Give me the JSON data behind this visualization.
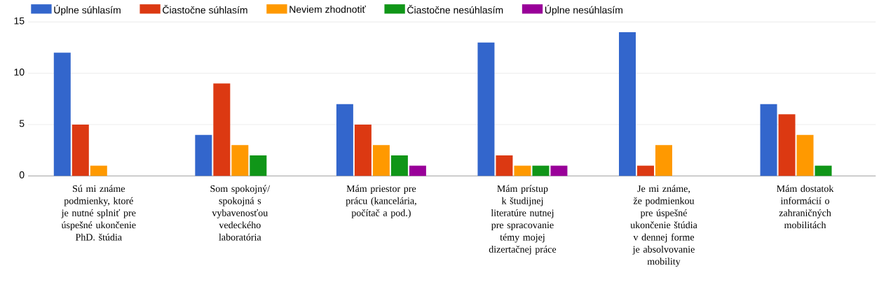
{
  "chart_data": {
    "type": "bar",
    "categories": [
      "Sú mi známe podmienky, ktoré je nutné splniť pre úspešné ukončenie PhD. štúdia",
      "Som spokojný/ spokojná s vybavenosťou vedeckého laboratória",
      "Mám priestor pre prácu (kancelária, počítač a pod.)",
      "Mám prístup k študijnej literatúre nutnej pre spracovanie témy mojej dizertačnej práce",
      "Je mi známe, že podmienkou pre úspešné ukončenie štúdia v dennej forme je absolvovanie mobility",
      "Mám dostatok informácií o zahraničných mobilitách"
    ],
    "series": [
      {
        "name": "Úplne súhlasím",
        "color": "#3366cc",
        "values": [
          12,
          4,
          7,
          13,
          14,
          7
        ]
      },
      {
        "name": "Čiastočne súhlasím",
        "color": "#dc3912",
        "values": [
          5,
          9,
          5,
          2,
          1,
          6
        ]
      },
      {
        "name": "Neviem zhodnotiť",
        "color": "#ff9900",
        "values": [
          1,
          3,
          3,
          1,
          3,
          4
        ]
      },
      {
        "name": "Čiastočne nesúhlasím",
        "color": "#109618",
        "values": [
          0,
          2,
          2,
          1,
          0,
          1
        ]
      },
      {
        "name": "Úplne nesúhlasím",
        "color": "#990099",
        "values": [
          0,
          0,
          1,
          1,
          0,
          0
        ]
      }
    ],
    "ylim": [
      0,
      15
    ],
    "yticks": [
      0,
      5,
      10,
      15
    ],
    "grid": "y",
    "legend": "top left"
  }
}
